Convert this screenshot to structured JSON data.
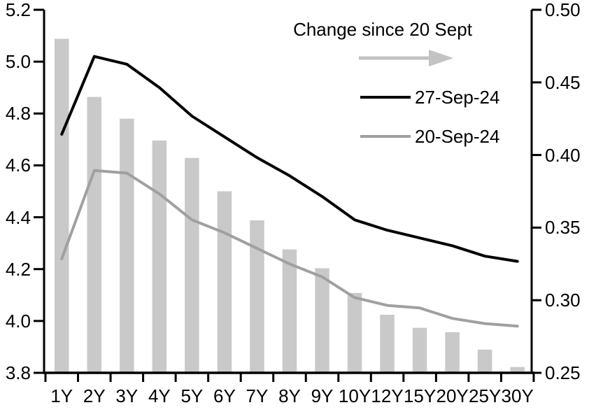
{
  "chart_data": {
    "type": "combo",
    "title": "",
    "categories": [
      "1Y",
      "2Y",
      "3Y",
      "4Y",
      "5Y",
      "6Y",
      "7Y",
      "8Y",
      "9Y",
      "10Y",
      "12Y",
      "15Y",
      "20Y",
      "25Y",
      "30Y"
    ],
    "series": [
      {
        "name": "Change since 20 Sept",
        "type": "bar",
        "axis": "right",
        "color": "#c9c9c9",
        "values": [
          0.48,
          0.44,
          0.425,
          0.41,
          0.398,
          0.375,
          0.355,
          0.335,
          0.322,
          0.305,
          0.29,
          0.281,
          0.278,
          0.266,
          0.254
        ]
      },
      {
        "name": "27-Sep-24",
        "type": "line",
        "axis": "left",
        "color": "#000000",
        "values": [
          4.72,
          5.02,
          4.99,
          4.9,
          4.79,
          4.71,
          4.63,
          4.56,
          4.48,
          4.39,
          4.35,
          4.32,
          4.29,
          4.25,
          4.23
        ]
      },
      {
        "name": "20-Sep-24",
        "type": "line",
        "axis": "left",
        "color": "#a0a0a0",
        "values": [
          4.24,
          4.58,
          4.57,
          4.49,
          4.39,
          4.34,
          4.28,
          4.22,
          4.17,
          4.09,
          4.06,
          4.05,
          4.01,
          3.99,
          3.98
        ]
      }
    ],
    "left_axis": {
      "min": 3.8,
      "max": 5.2,
      "tick_step": 0.2,
      "tick_labels": [
        "5.2",
        "5.0",
        "4.8",
        "4.6",
        "4.4",
        "4.2",
        "4.0",
        "3.8"
      ]
    },
    "right_axis": {
      "min": 0.25,
      "max": 0.5,
      "tick_step": 0.05,
      "tick_labels": [
        "0.50",
        "0.45",
        "0.40",
        "0.35",
        "0.30",
        "0.25"
      ]
    },
    "legend": {
      "position": "top-center",
      "arrow_label": "Change since 20 Sept",
      "arrow_color": "#c3c3c3",
      "arrow_icon": "right-arrow",
      "items": [
        {
          "label": "27-Sep-24",
          "color": "#000000"
        },
        {
          "label": "20-Sep-24",
          "color": "#a0a0a0"
        }
      ]
    },
    "grid": false,
    "axis_color": "#000000"
  }
}
